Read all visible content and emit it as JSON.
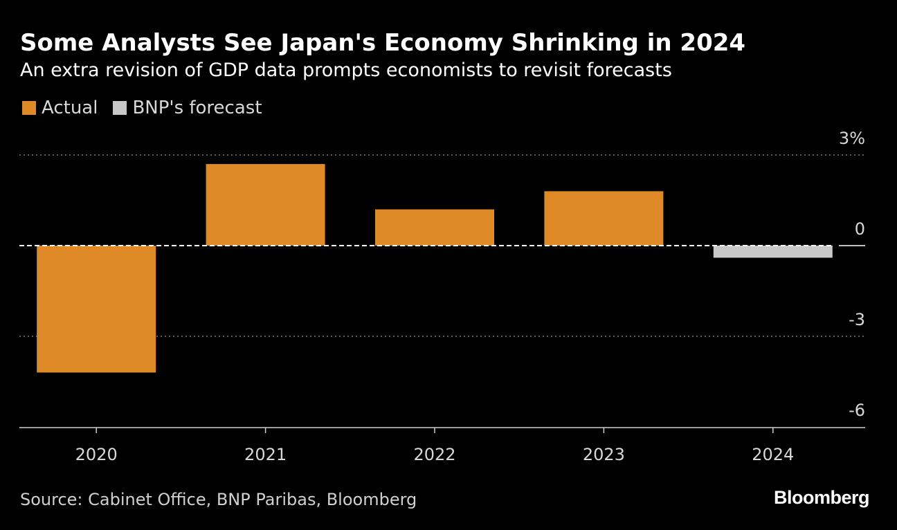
{
  "header": {
    "title": "Some Analysts See Japan's Economy Shrinking in 2024",
    "subtitle": "An extra revision of GDP data prompts economists to revisit forecasts"
  },
  "legend": {
    "actual": "Actual",
    "forecast": "BNP's forecast"
  },
  "colors": {
    "actual": "#df8a26",
    "forecast": "#c8c8c8",
    "background": "#000000",
    "gridline": "#7a7a7a",
    "zero_line": "#ffffff"
  },
  "chart_data": {
    "type": "bar",
    "title": "Some Analysts See Japan's Economy Shrinking in 2024",
    "subtitle": "An extra revision of GDP data prompts economists to revisit forecasts",
    "xlabel": "",
    "ylabel": "",
    "categories": [
      "2020",
      "2021",
      "2022",
      "2023",
      "2024"
    ],
    "series": [
      {
        "name": "Actual",
        "values": [
          -4.2,
          2.7,
          1.2,
          1.8,
          null
        ]
      },
      {
        "name": "BNP's forecast",
        "values": [
          null,
          null,
          null,
          null,
          -0.4
        ]
      }
    ],
    "ylim": [
      -6,
      3
    ],
    "y_ticks": [
      3,
      0,
      -3,
      -6
    ],
    "y_tick_labels": [
      "3%",
      "0",
      "-3",
      "-6"
    ],
    "gridlines": [
      3,
      -3
    ],
    "legend_position": "top-left"
  },
  "footer": {
    "source": "Source: Cabinet Office, BNP Paribas, Bloomberg",
    "brand": "Bloomberg"
  }
}
